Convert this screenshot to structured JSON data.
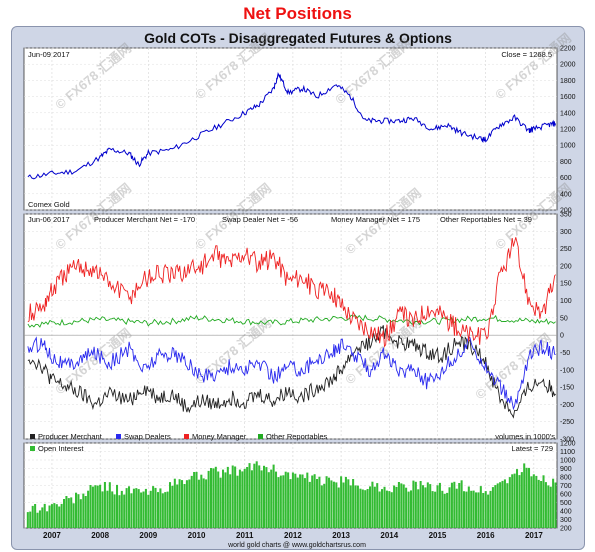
{
  "headline": "Net Positions",
  "title": "Gold COTs - Disaggregated Futures & Options",
  "footer": "world gold charts @ www.goldchartsrus.com",
  "watermark": "© FX678 汇通网",
  "colors": {
    "price": "#0000cc",
    "producer": "#222222",
    "swap": "#2a2aee",
    "money": "#ee2222",
    "other": "#22aa22",
    "oi": "#33bb33",
    "frame": "#cfd6e6"
  },
  "chart_data": [
    {
      "type": "line",
      "panel": "price",
      "date_label": "Jun-09  2017",
      "series_label": "Comex Gold",
      "close_label": "Close = 1268.5",
      "ylim": [
        200,
        2200
      ],
      "yticks": [
        200,
        400,
        600,
        800,
        1000,
        1200,
        1400,
        1600,
        1800,
        2000,
        2200
      ],
      "x": [
        2006.5,
        2007.0,
        2007.5,
        2008.0,
        2008.2,
        2008.6,
        2008.8,
        2009.0,
        2009.5,
        2010.0,
        2010.5,
        2011.0,
        2011.3,
        2011.6,
        2011.7,
        2011.9,
        2012.2,
        2012.5,
        2012.9,
        2013.2,
        2013.5,
        2013.8,
        2014.2,
        2014.5,
        2014.9,
        2015.2,
        2015.5,
        2015.9,
        2016.0,
        2016.3,
        2016.6,
        2016.9,
        2017.0,
        2017.3,
        2017.45
      ],
      "values": [
        600,
        650,
        680,
        850,
        950,
        900,
        760,
        900,
        950,
        1100,
        1250,
        1400,
        1500,
        1700,
        1880,
        1650,
        1700,
        1600,
        1750,
        1600,
        1300,
        1300,
        1300,
        1330,
        1200,
        1250,
        1150,
        1080,
        1070,
        1250,
        1340,
        1180,
        1200,
        1250,
        1268
      ]
    },
    {
      "type": "line",
      "panel": "net-positions",
      "date_label": "Jun-06  2017",
      "legend_labels": [
        "Producer Merchant Net = -170",
        "Swap Dealer Net = -56",
        "Money Manager Net = 175",
        "Other Reportables Net = 39"
      ],
      "ylim": [
        -300,
        350
      ],
      "yticks": [
        -300,
        -250,
        -200,
        -150,
        -100,
        -50,
        0,
        50,
        100,
        150,
        200,
        250,
        300,
        350
      ],
      "series": [
        {
          "name": "Producer Merchant",
          "x": [
            2006.5,
            2006.8,
            2007.0,
            2007.3,
            2007.6,
            2007.9,
            2008.2,
            2008.6,
            2008.9,
            2009.2,
            2009.5,
            2009.8,
            2010.1,
            2010.4,
            2010.7,
            2011.0,
            2011.3,
            2011.6,
            2011.9,
            2012.2,
            2012.5,
            2012.8,
            2013.0,
            2013.3,
            2013.6,
            2013.9,
            2014.2,
            2014.5,
            2014.8,
            2015.1,
            2015.4,
            2015.7,
            2016.0,
            2016.3,
            2016.6,
            2016.9,
            2017.2,
            2017.45
          ],
          "values": [
            -60,
            -90,
            -130,
            -150,
            -170,
            -200,
            -170,
            -190,
            -150,
            -180,
            -170,
            -210,
            -190,
            -200,
            -180,
            -190,
            -170,
            -190,
            -160,
            -180,
            -150,
            -130,
            -100,
            -40,
            -20,
            10,
            -20,
            -30,
            -50,
            -60,
            -20,
            -30,
            -80,
            -180,
            -230,
            -150,
            -130,
            -170
          ]
        },
        {
          "name": "Swap Dealers",
          "x": [
            2006.5,
            2006.8,
            2007.0,
            2007.3,
            2007.6,
            2007.9,
            2008.2,
            2008.6,
            2008.9,
            2009.2,
            2009.5,
            2009.8,
            2010.1,
            2010.4,
            2010.7,
            2011.0,
            2011.3,
            2011.6,
            2011.9,
            2012.2,
            2012.5,
            2012.8,
            2013.0,
            2013.3,
            2013.6,
            2013.9,
            2014.2,
            2014.5,
            2014.8,
            2015.1,
            2015.4,
            2015.7,
            2016.0,
            2016.3,
            2016.6,
            2016.9,
            2017.2,
            2017.45
          ],
          "values": [
            -40,
            -20,
            -60,
            -90,
            -70,
            -50,
            -80,
            -40,
            -100,
            -60,
            -50,
            -80,
            -120,
            -110,
            -90,
            -100,
            -80,
            -120,
            -90,
            -100,
            -70,
            -50,
            -30,
            -60,
            -100,
            -50,
            -110,
            -90,
            -140,
            -100,
            -60,
            -20,
            -90,
            -150,
            -210,
            -60,
            -30,
            -56
          ]
        },
        {
          "name": "Money Manager",
          "x": [
            2006.5,
            2006.8,
            2007.0,
            2007.3,
            2007.6,
            2007.9,
            2008.2,
            2008.6,
            2008.9,
            2009.2,
            2009.5,
            2009.8,
            2010.1,
            2010.4,
            2010.7,
            2011.0,
            2011.3,
            2011.6,
            2011.9,
            2012.2,
            2012.5,
            2012.8,
            2013.0,
            2013.3,
            2013.6,
            2013.9,
            2014.2,
            2014.5,
            2014.8,
            2015.1,
            2015.4,
            2015.7,
            2016.0,
            2016.3,
            2016.6,
            2016.9,
            2017.2,
            2017.45
          ],
          "values": [
            60,
            80,
            130,
            180,
            200,
            190,
            150,
            110,
            160,
            180,
            170,
            190,
            200,
            230,
            210,
            240,
            200,
            230,
            160,
            170,
            120,
            130,
            90,
            40,
            20,
            -10,
            60,
            40,
            80,
            60,
            20,
            0,
            -10,
            170,
            270,
            100,
            60,
            175
          ]
        },
        {
          "name": "Other Reportables",
          "x": [
            2006.5,
            2007.0,
            2007.5,
            2008.0,
            2008.5,
            2009.0,
            2009.5,
            2010.0,
            2010.5,
            2011.0,
            2011.5,
            2012.0,
            2012.5,
            2013.0,
            2013.5,
            2014.0,
            2014.5,
            2015.0,
            2015.5,
            2016.0,
            2016.5,
            2017.0,
            2017.45
          ],
          "values": [
            30,
            35,
            40,
            45,
            40,
            35,
            40,
            50,
            45,
            40,
            35,
            40,
            45,
            50,
            50,
            45,
            40,
            40,
            45,
            50,
            45,
            40,
            39
          ]
        }
      ]
    },
    {
      "type": "bar",
      "panel": "open-interest",
      "series_label": "Open Interest",
      "latest_label": "Latest = 729",
      "volume_note": "volumes in 1000's",
      "ylim": [
        200,
        1200
      ],
      "yticks": [
        200,
        300,
        400,
        500,
        600,
        700,
        800,
        900,
        1000,
        1100,
        1200
      ],
      "x": [
        2006.5,
        2007.0,
        2007.5,
        2008.0,
        2008.5,
        2009.0,
        2009.5,
        2010.0,
        2010.5,
        2011.0,
        2011.3,
        2011.6,
        2012.0,
        2012.5,
        2013.0,
        2013.5,
        2014.0,
        2014.5,
        2015.0,
        2015.5,
        2016.0,
        2016.5,
        2016.8,
        2017.0,
        2017.45
      ],
      "values": [
        430,
        460,
        560,
        700,
        640,
        620,
        700,
        820,
        860,
        880,
        950,
        880,
        820,
        760,
        740,
        700,
        680,
        700,
        660,
        700,
        620,
        800,
        900,
        820,
        729
      ],
      "x_ticks": [
        "2007",
        "2008",
        "2009",
        "2010",
        "2011",
        "2012",
        "2013",
        "2014",
        "2015",
        "2016",
        "2017"
      ],
      "x_range": [
        2006.42,
        2017.48
      ]
    }
  ]
}
